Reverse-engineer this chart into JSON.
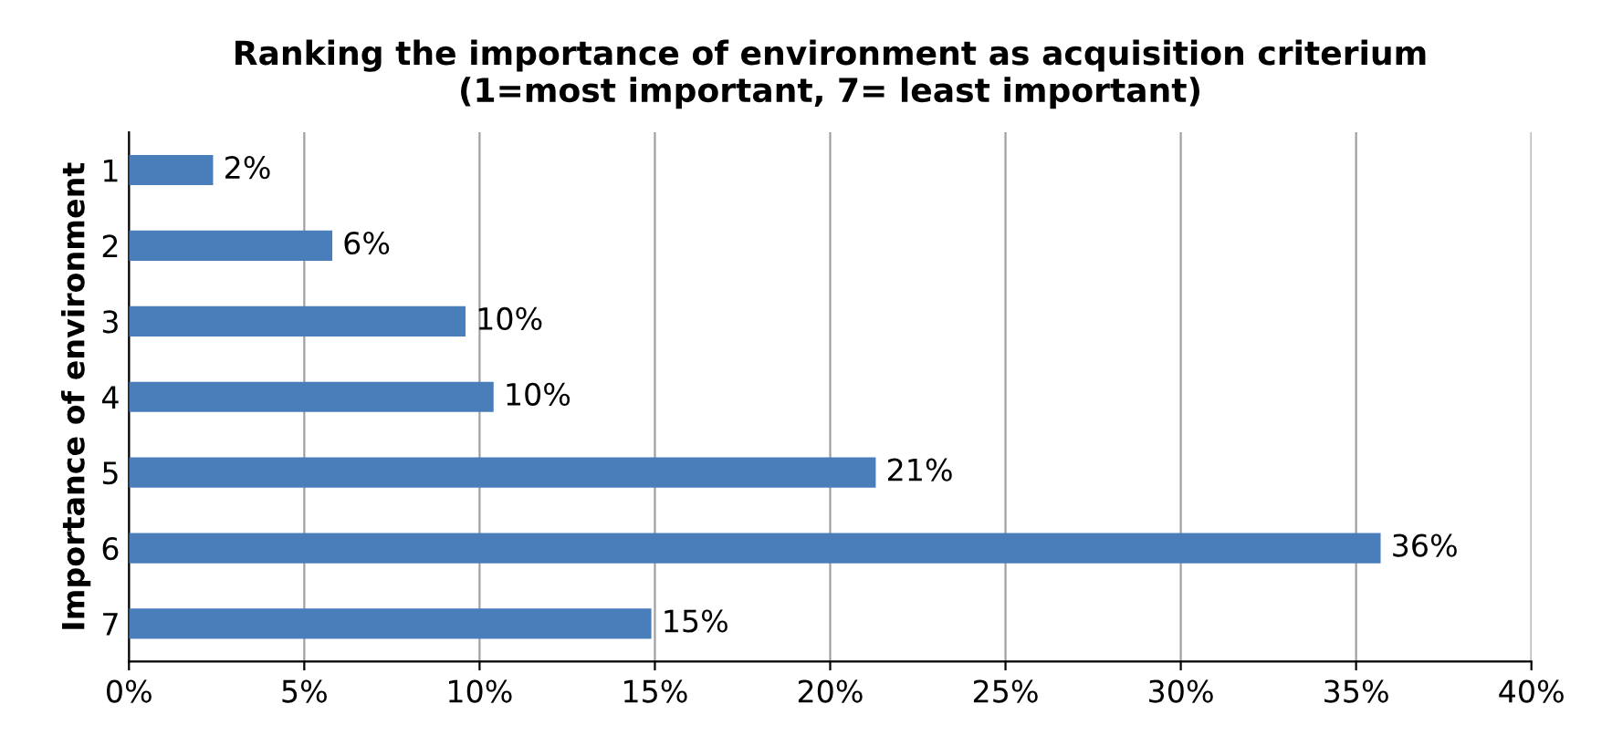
{
  "chart_data": {
    "type": "bar",
    "orientation": "horizontal",
    "title": "Ranking the importance of environment as acquisition criterium\n(1=most important, 7= least important)",
    "ylabel": "Importance of environment",
    "categories": [
      "1",
      "2",
      "3",
      "4",
      "5",
      "6",
      "7"
    ],
    "values": [
      2.4,
      5.8,
      9.6,
      10.4,
      21.3,
      35.7,
      14.9
    ],
    "value_labels": [
      "2%",
      "6%",
      "10%",
      "10%",
      "21%",
      "36%",
      "15%"
    ],
    "color": "#4a7ebb",
    "xlim": [
      0,
      40
    ],
    "xticks": [
      {
        "value": 0,
        "label": "0%"
      },
      {
        "value": 5,
        "label": "5%"
      },
      {
        "value": 10,
        "label": "10%"
      },
      {
        "value": 15,
        "label": "15%"
      },
      {
        "value": 20,
        "label": "20%"
      },
      {
        "value": 25,
        "label": "25%"
      },
      {
        "value": 30,
        "label": "30%"
      },
      {
        "value": 35,
        "label": "35%"
      },
      {
        "value": 40,
        "label": "40%"
      }
    ],
    "grid": "x"
  }
}
